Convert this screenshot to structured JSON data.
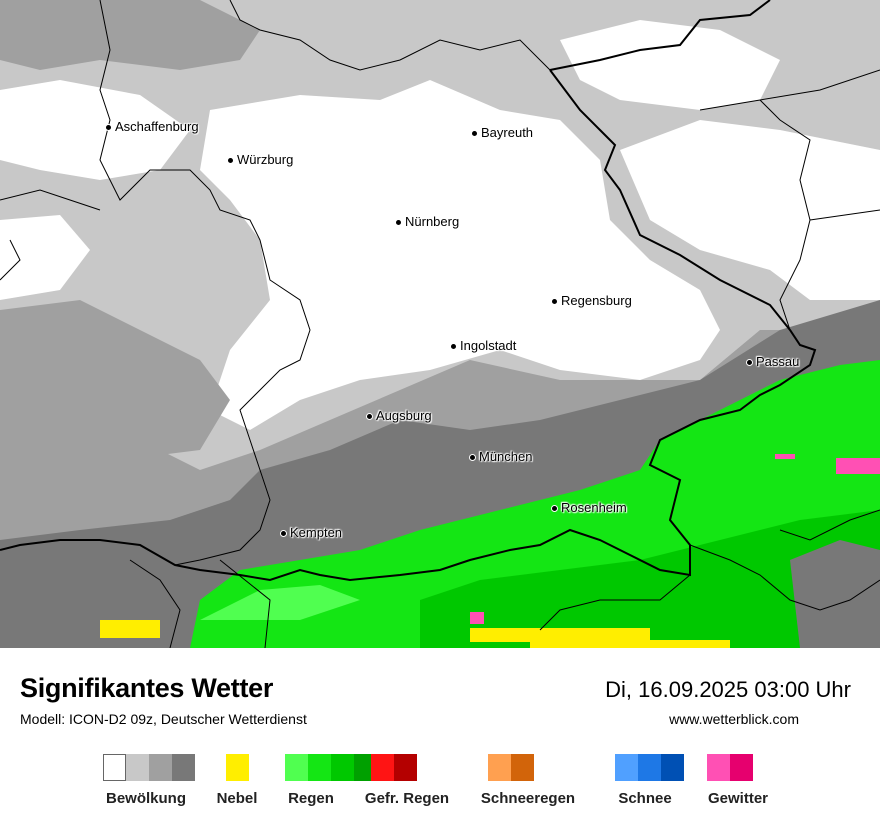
{
  "map": {
    "cities": [
      {
        "name": "Aschaffenburg"
      },
      {
        "name": "Würzburg"
      },
      {
        "name": "Bayreuth"
      },
      {
        "name": "Nürnberg"
      },
      {
        "name": "Regensburg"
      },
      {
        "name": "Ingolstadt"
      },
      {
        "name": "Passau"
      },
      {
        "name": "Augsburg"
      },
      {
        "name": "München"
      },
      {
        "name": "Rosenheim"
      },
      {
        "name": "Kempten"
      }
    ]
  },
  "footer": {
    "title": "Signifikantes Wetter",
    "model": "Modell: ICON-D2 09z, Deutscher Wetterdienst",
    "datetime": "Di, 16.09.2025 03:00 Uhr",
    "website": "www.wetterblick.com"
  },
  "legend": [
    {
      "label": "Bewölkung",
      "colors": [
        "#ffffff",
        "#c8c8c8",
        "#a0a0a0",
        "#787878"
      ]
    },
    {
      "label": "Nebel",
      "colors": [
        "#ffee00"
      ]
    },
    {
      "label": "Regen",
      "colors": [
        "#50ff50",
        "#14e614",
        "#00c800",
        "#00a000"
      ]
    },
    {
      "label": "Gefr. Regen",
      "colors": [
        "#ff1414",
        "#b40000"
      ]
    },
    {
      "label": "Schneeregen",
      "colors": [
        "#ffa050",
        "#d2640a"
      ]
    },
    {
      "label": "Schnee",
      "colors": [
        "#50a0ff",
        "#1e78e6",
        "#0050b4"
      ]
    },
    {
      "label": "Gewitter",
      "colors": [
        "#ff50b4",
        "#e6006e"
      ]
    }
  ]
}
